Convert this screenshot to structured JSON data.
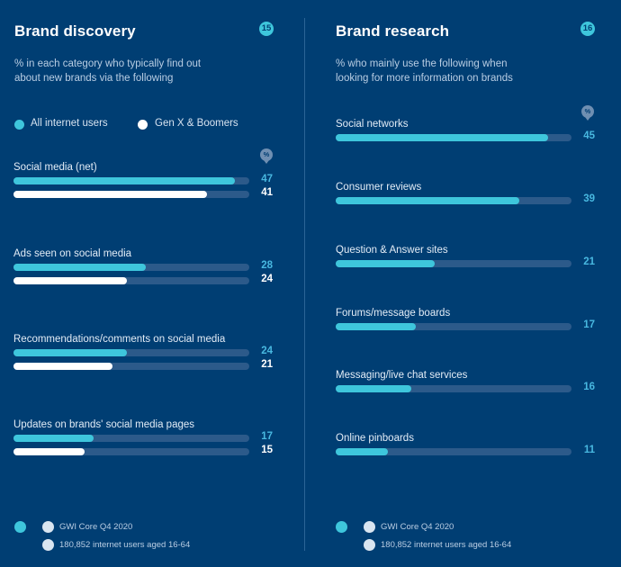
{
  "colors": {
    "background": "#003e73",
    "accent": "#3ec6dc",
    "secondary": "#ffffff",
    "track": "#2c5a8a",
    "value_accent": "#48b8e0"
  },
  "chart_data": [
    {
      "type": "bar",
      "orientation": "horizontal",
      "title": "Brand discovery",
      "badge": "15",
      "subtitle": "% in each category who typically find out about new brands via the following",
      "subtitle_lines": [
        "% in each category who typically find out",
        "about new brands via the following"
      ],
      "unit_badge": "%",
      "xlim": [
        0,
        50
      ],
      "legend": [
        "All internet users",
        "Gen X & Boomers"
      ],
      "legend_position": "top-left",
      "categories": [
        "Social media (net)",
        "Ads seen on social media",
        "Recommendations/comments on social media",
        "Updates on brands' social media pages"
      ],
      "series": [
        {
          "name": "All internet users",
          "values": [
            47,
            28,
            24,
            17
          ]
        },
        {
          "name": "Gen X & Boomers",
          "values": [
            41,
            24,
            21,
            15
          ]
        }
      ],
      "footer": {
        "source": "GWI Core Q4 2020",
        "base": "180,852 internet users aged 16-64"
      }
    },
    {
      "type": "bar",
      "orientation": "horizontal",
      "title": "Brand research",
      "badge": "16",
      "subtitle": "% who mainly use the following when looking for more information on brands",
      "subtitle_lines": [
        "% who mainly use the following when",
        "looking for more information on brands"
      ],
      "unit_badge": "%",
      "xlim": [
        0,
        50
      ],
      "categories": [
        "Social networks",
        "Consumer reviews",
        "Question & Answer sites",
        "Forums/message boards",
        "Messaging/live chat services",
        "Online pinboards"
      ],
      "series": [
        {
          "name": "All internet users",
          "values": [
            45,
            39,
            21,
            17,
            16,
            11
          ]
        }
      ],
      "footer": {
        "source": "GWI Core Q4 2020",
        "base": "180,852 internet users aged 16-64"
      }
    }
  ]
}
